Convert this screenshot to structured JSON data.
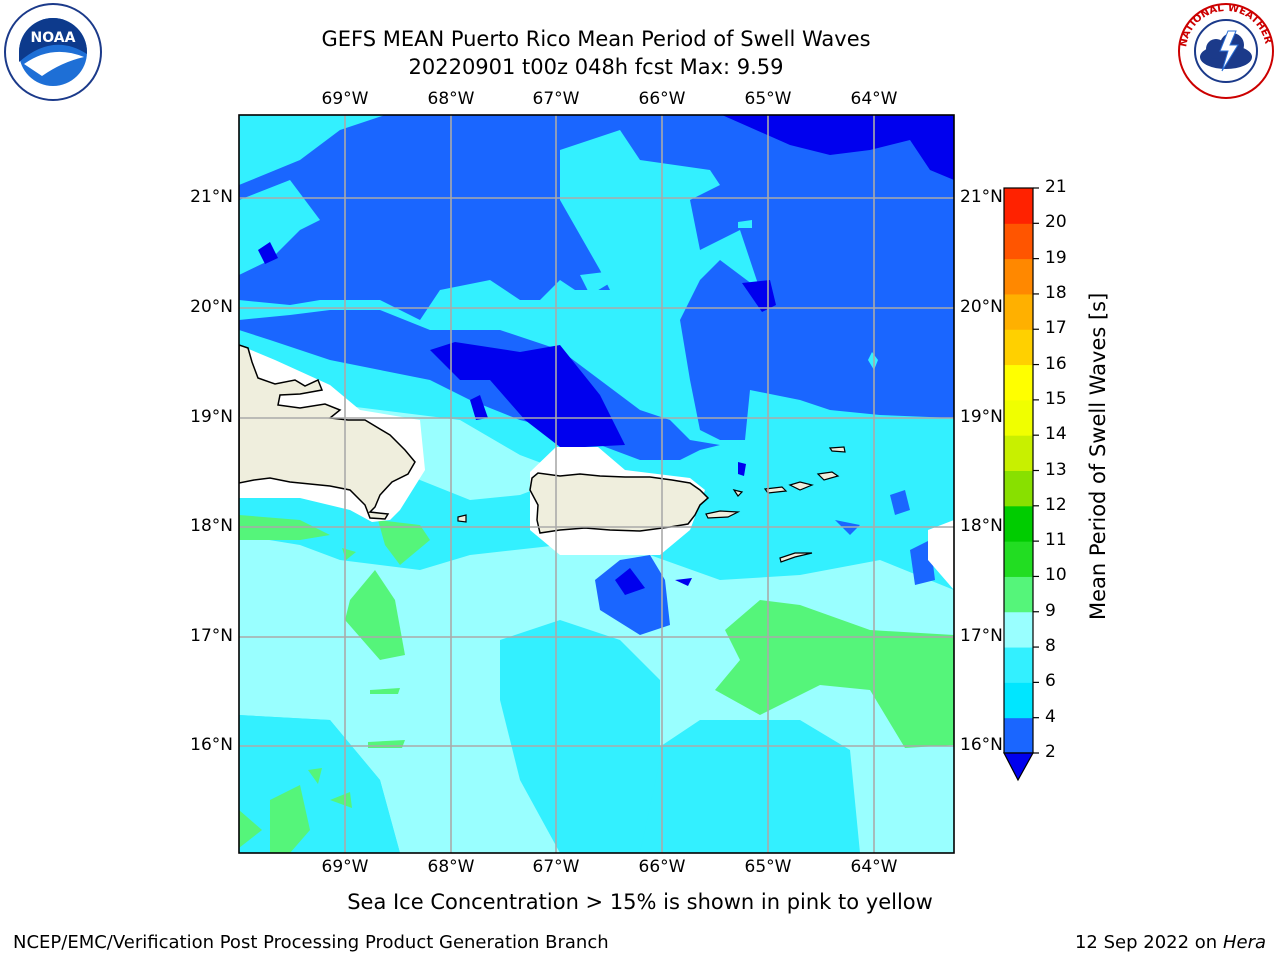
{
  "header": {
    "title_line1": "GEFS MEAN Puerto Rico Mean Period of Swell Waves",
    "title_line2": "20220901 t00z 048h fcst   Max: 9.59"
  },
  "map": {
    "lon_labels": [
      "69°W",
      "68°W",
      "67°W",
      "66°W",
      "65°W",
      "64°W"
    ],
    "lat_labels": [
      "21°N",
      "20°N",
      "19°N",
      "18°N",
      "17°N",
      "16°N"
    ]
  },
  "colorbar": {
    "title": "Mean Period of Swell Waves [s]",
    "ticks": [
      "2",
      "4",
      "6",
      "8",
      "9",
      "10",
      "11",
      "12",
      "13",
      "14",
      "15",
      "16",
      "17",
      "18",
      "19",
      "20",
      "21"
    ],
    "colors": [
      "#1a66ff",
      "#00e6ff",
      "#33f0ff",
      "#99ffff",
      "#55f57a",
      "#22dd22",
      "#00cc00",
      "#88e000",
      "#c8f000",
      "#f0ff00",
      "#ffff00",
      "#ffd000",
      "#ffb000",
      "#ff8800",
      "#ff5500",
      "#ff2200"
    ],
    "under_color": "#0000ee"
  },
  "logos": {
    "noaa_text": "NOAA",
    "nws_text": "NATIONAL WEATHER SERVICE"
  },
  "footnote": "Sea Ice Concentration > 15% is shown in pink to yellow",
  "credit_left": "NCEP/EMC/Verification Post Processing Product Generation Branch",
  "credit_right_date": "12 Sep 2022 on",
  "credit_right_machine": "Hera"
}
